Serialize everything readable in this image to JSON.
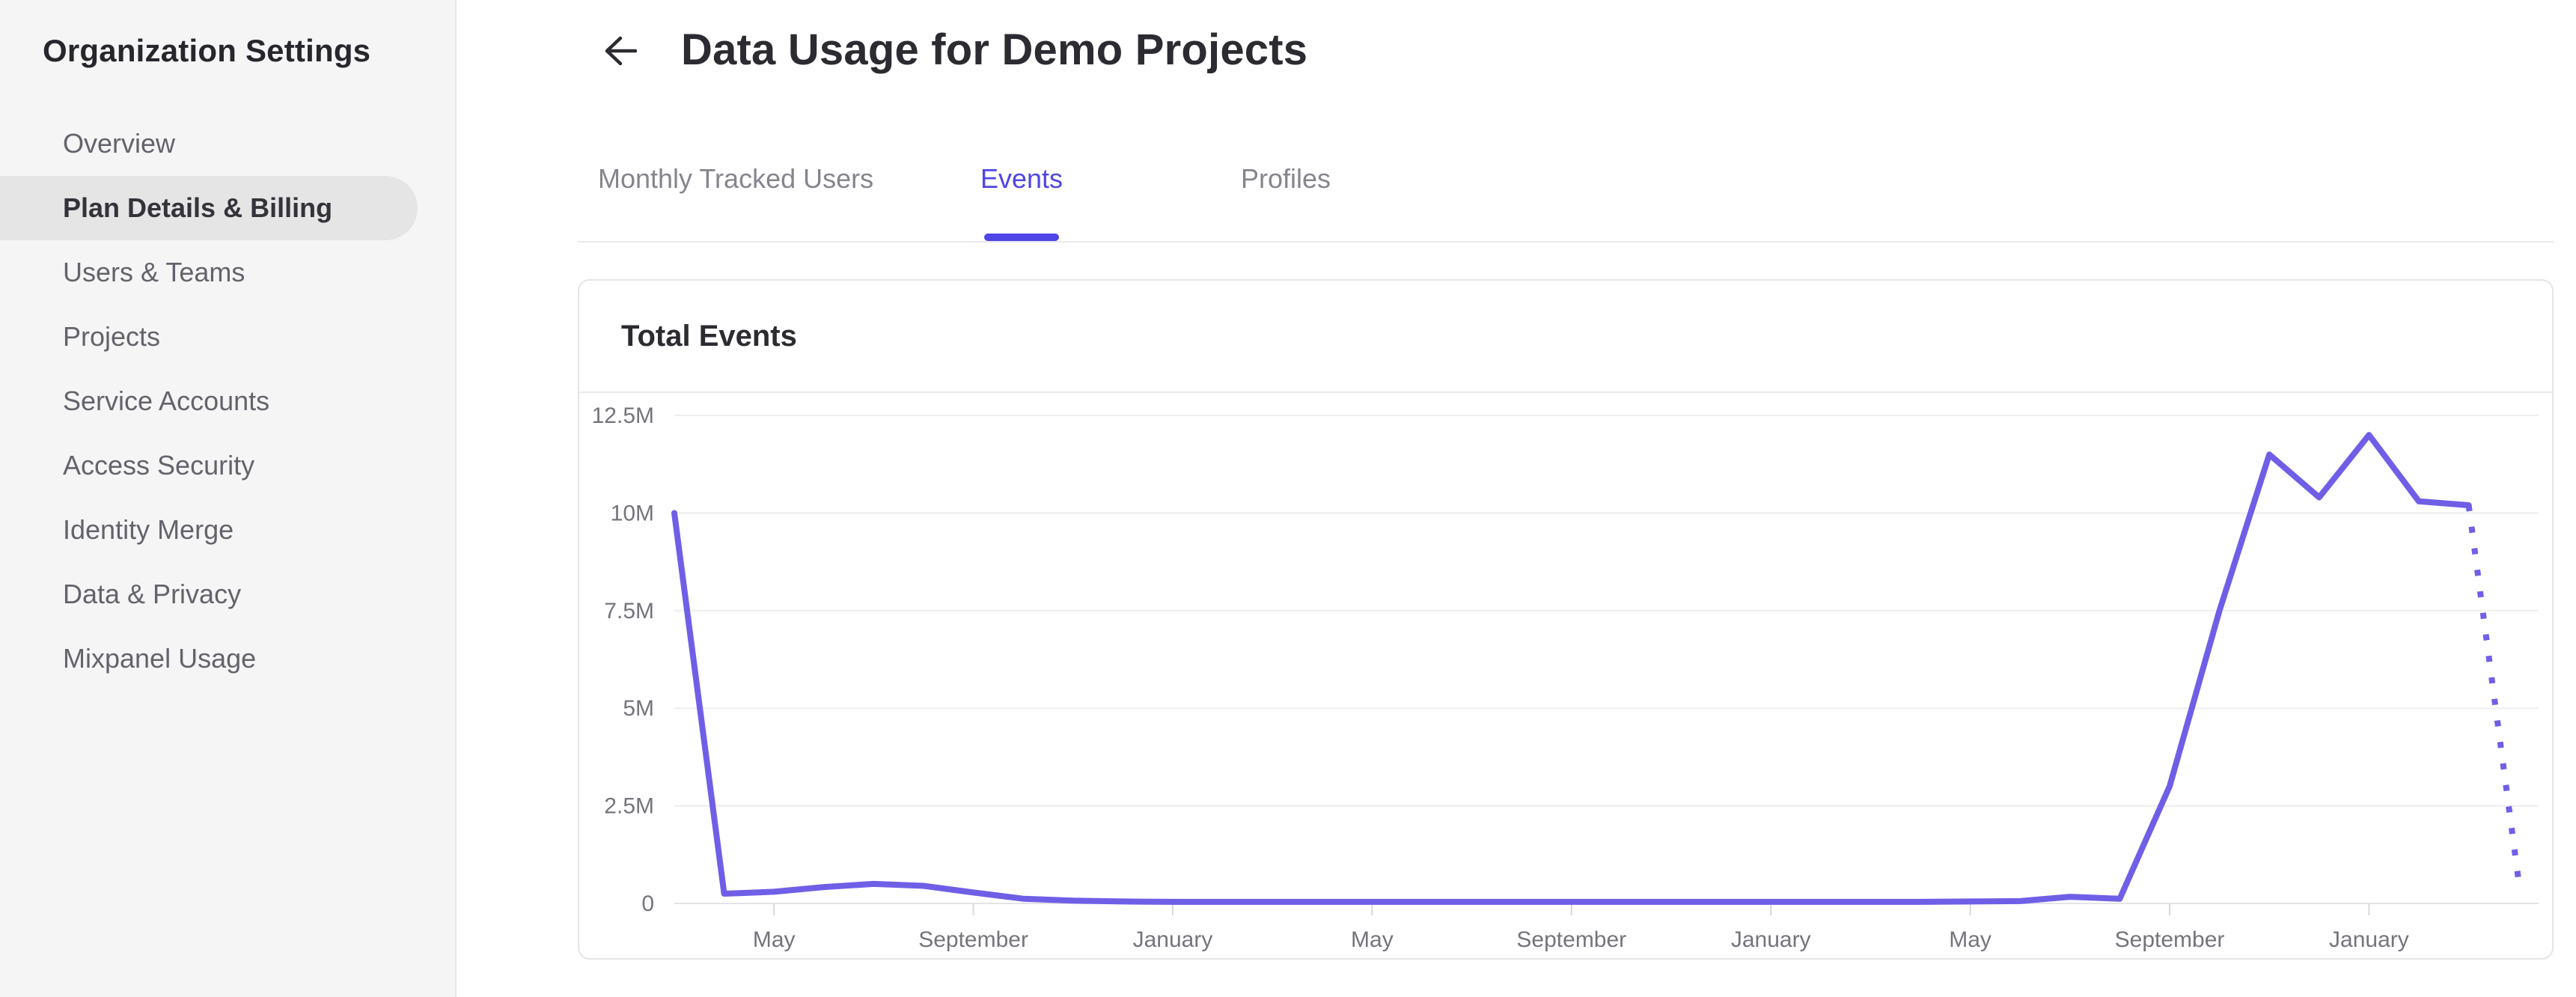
{
  "sidebar": {
    "title": "Organization Settings",
    "items": [
      {
        "label": "Overview",
        "selected": false
      },
      {
        "label": "Plan Details & Billing",
        "selected": true
      },
      {
        "label": "Users & Teams",
        "selected": false
      },
      {
        "label": "Projects",
        "selected": false
      },
      {
        "label": "Service Accounts",
        "selected": false
      },
      {
        "label": "Access Security",
        "selected": false
      },
      {
        "label": "Identity Merge",
        "selected": false
      },
      {
        "label": "Data & Privacy",
        "selected": false
      },
      {
        "label": "Mixpanel Usage",
        "selected": false
      }
    ]
  },
  "header": {
    "title": "Data Usage for Demo Projects"
  },
  "tabs": [
    {
      "label": "Monthly Tracked Users",
      "active": false
    },
    {
      "label": "Events",
      "active": true
    },
    {
      "label": "Profiles",
      "active": false
    }
  ],
  "colors": {
    "accent": "#4f46e5",
    "line": "#6f5fe6",
    "grid": "#ededf0",
    "axis": "#e3e3e6",
    "tick": "#d9d9dc",
    "axis_text": "#74747d",
    "sidebar_bg": "#f5f5f5",
    "selected_bg": "#e5e5e5"
  },
  "chart_data": {
    "type": "line",
    "title": "Total Events",
    "unit": "millions of events per month",
    "ylim": [
      0,
      12.5
    ],
    "grid": true,
    "legend": "none",
    "y_ticks": [
      {
        "value": 0,
        "label": "0"
      },
      {
        "value": 2.5,
        "label": "2.5M"
      },
      {
        "value": 5,
        "label": "5M"
      },
      {
        "value": 7.5,
        "label": "7.5M"
      },
      {
        "value": 10,
        "label": "10M"
      },
      {
        "value": 12.5,
        "label": "12.5M"
      }
    ],
    "x_ticks": [
      {
        "index": 2,
        "label": "May"
      },
      {
        "index": 6,
        "label": "September"
      },
      {
        "index": 10,
        "label": "January"
      },
      {
        "index": 14,
        "label": "May"
      },
      {
        "index": 18,
        "label": "September"
      },
      {
        "index": 22,
        "label": "January"
      },
      {
        "index": 26,
        "label": "May"
      },
      {
        "index": 30,
        "label": "September"
      },
      {
        "index": 34,
        "label": "January"
      }
    ],
    "series": [
      {
        "name": "Total Events",
        "values_millions": [
          10,
          0.25,
          0.3,
          0.42,
          0.5,
          0.45,
          0.28,
          0.12,
          0.07,
          0.05,
          0.04,
          0.04,
          0.04,
          0.04,
          0.04,
          0.04,
          0.04,
          0.04,
          0.04,
          0.04,
          0.04,
          0.04,
          0.04,
          0.04,
          0.04,
          0.04,
          0.05,
          0.06,
          0.17,
          0.12,
          3.0,
          7.5,
          11.5,
          10.4,
          12.0,
          10.3,
          10.2,
          0.6
        ],
        "dotted_tail_segments": 1
      }
    ]
  }
}
